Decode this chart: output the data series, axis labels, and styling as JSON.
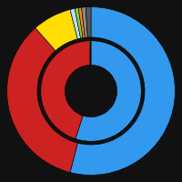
{
  "outer_slices": [
    {
      "label": "Blue",
      "value": 54.0,
      "color": "#3399EE"
    },
    {
      "label": "Red",
      "value": 34.5,
      "color": "#CC2222"
    },
    {
      "label": "Yellow",
      "value": 7.5,
      "color": "#FFDD00"
    },
    {
      "label": "LightBlue",
      "value": 0.9,
      "color": "#BBDDFF"
    },
    {
      "label": "Green",
      "value": 0.7,
      "color": "#88CC44"
    },
    {
      "label": "Orange",
      "value": 0.6,
      "color": "#FF8800"
    },
    {
      "label": "Gray",
      "value": 0.8,
      "color": "#888888"
    },
    {
      "label": "DarkGray",
      "value": 1.0,
      "color": "#555555"
    }
  ],
  "inner_slices": [
    {
      "label": "Blue",
      "value": 55.0,
      "color": "#3399EE"
    },
    {
      "label": "Red",
      "value": 44.5,
      "color": "#CC2222"
    },
    {
      "label": "Yellow",
      "value": 0.3,
      "color": "#FFDD00"
    },
    {
      "label": "Gray",
      "value": 0.2,
      "color": "#888888"
    }
  ],
  "background_color": "#111111",
  "startangle": 90,
  "outer_outer_r": 0.97,
  "outer_inner_r": 0.62,
  "inner_outer_r": 0.58,
  "inner_inner_r": 0.3
}
